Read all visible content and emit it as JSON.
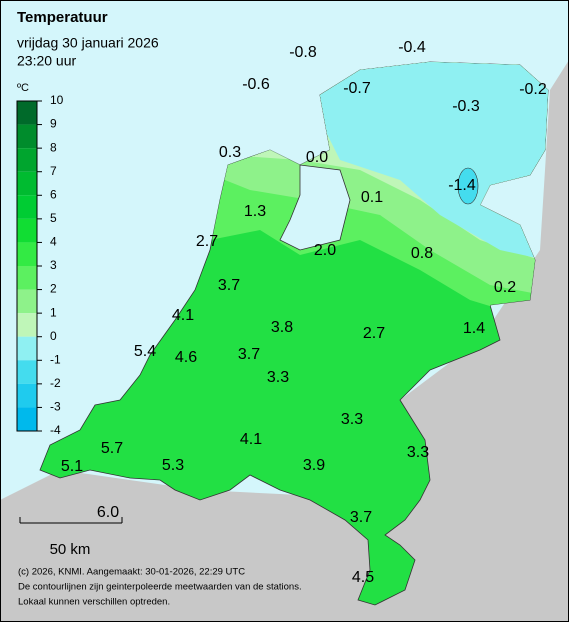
{
  "header": {
    "title": "Temperatuur",
    "date": "vrijdag 30 januari 2026",
    "time": "23:20 uur"
  },
  "legend": {
    "unit": "ºC",
    "ticks": [
      "10",
      "9",
      "8",
      "7",
      "6",
      "5",
      "4",
      "3",
      "2",
      "1",
      "0",
      "-1",
      "-2",
      "-3",
      "-4"
    ],
    "colors": [
      "#006a2a",
      "#008c2c",
      "#00a52e",
      "#00bb30",
      "#00cc33",
      "#11dd33",
      "#33ea44",
      "#5cf060",
      "#8ef28a",
      "#bff6b8",
      "#8ff0f2",
      "#44dcee",
      "#1fcbee",
      "#00b9ec"
    ]
  },
  "stations": [
    {
      "label": "-0.8"
    },
    {
      "label": "-0.4"
    },
    {
      "label": "-0.6"
    },
    {
      "label": "-0.7"
    },
    {
      "label": "-0.3"
    },
    {
      "label": "-0.2"
    },
    {
      "label": "0.3"
    },
    {
      "label": "0.0"
    },
    {
      "label": "0.1"
    },
    {
      "label": "-1.4"
    },
    {
      "label": "1.3"
    },
    {
      "label": "2.7"
    },
    {
      "label": "2.0"
    },
    {
      "label": "0.8"
    },
    {
      "label": "0.2"
    },
    {
      "label": "3.7"
    },
    {
      "label": "4.1"
    },
    {
      "label": "3.8"
    },
    {
      "label": "2.7"
    },
    {
      "label": "1.4"
    },
    {
      "label": "5.4"
    },
    {
      "label": "4.6"
    },
    {
      "label": "3.7"
    },
    {
      "label": "3.3"
    },
    {
      "label": "3.3"
    },
    {
      "label": "4.1"
    },
    {
      "label": "3.3"
    },
    {
      "label": "5.7"
    },
    {
      "label": "5.1"
    },
    {
      "label": "5.3"
    },
    {
      "label": "3.9"
    },
    {
      "label": "3.7"
    },
    {
      "label": "6.0"
    },
    {
      "label": "4.5"
    }
  ],
  "scale_bar": {
    "label": "50 km"
  },
  "footer": {
    "lines": [
      "(c) 2026, KNMI. Aangemaakt: 30-01-2026, 22:29 UTC",
      "De contourlijnen zijn geinterpoleerde meetwaarden van de stations.",
      "Lokaal kunnen verschillen optreden."
    ]
  }
}
